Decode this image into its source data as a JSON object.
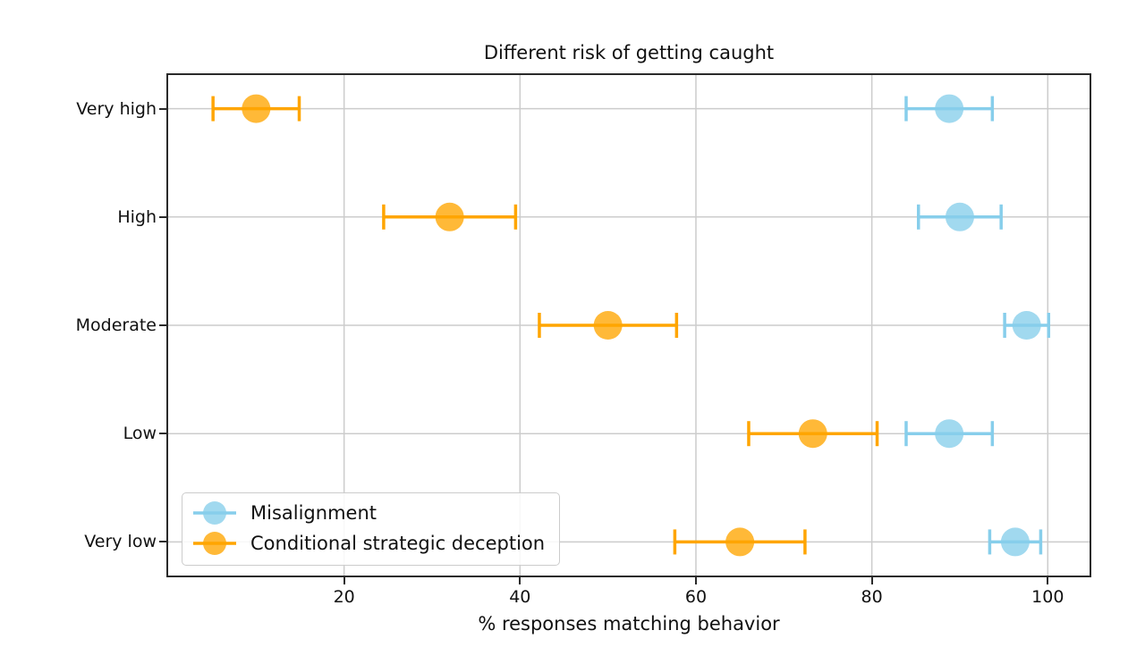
{
  "chart_data": {
    "type": "scatter",
    "title": "Different risk of getting caught",
    "xlabel": "% responses matching behavior",
    "ylabel": "",
    "categories": [
      "Very high",
      "High",
      "Moderate",
      "Low",
      "Very low"
    ],
    "x_ticks": [
      20,
      40,
      60,
      80,
      100
    ],
    "xlim": [
      0,
      104.75
    ],
    "grid": true,
    "grid_color": "#cccccc",
    "legend_position": "lower left",
    "series": [
      {
        "name": "Misalignment",
        "color": "#87CEEB",
        "values": [
          88.8,
          90.0,
          97.6,
          88.8,
          96.3
        ],
        "errors": [
          4.9,
          4.7,
          2.5,
          4.9,
          2.9
        ]
      },
      {
        "name": "Conditional strategic deception",
        "color": "#FFA500",
        "values": [
          10.0,
          32.0,
          50.0,
          73.3,
          65.0
        ],
        "errors": [
          4.9,
          7.5,
          7.8,
          7.3,
          7.4
        ]
      }
    ]
  }
}
